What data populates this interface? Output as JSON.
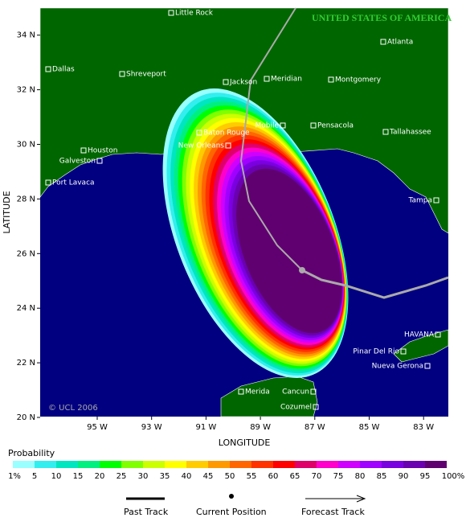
{
  "map": {
    "country_label": "UNITED STATES OF AMERICA",
    "credit": "© UCL 2006",
    "x_axis_label": "LONGITUDE",
    "y_axis_label": "LATITUDE",
    "xticks": [
      {
        "value": -95,
        "label": "95 W"
      },
      {
        "value": -93,
        "label": "93 W"
      },
      {
        "value": -91,
        "label": "91 W"
      },
      {
        "value": -89,
        "label": "89 W"
      },
      {
        "value": -87,
        "label": "87 W"
      },
      {
        "value": -85,
        "label": "85 W"
      },
      {
        "value": -83,
        "label": "83 W"
      }
    ],
    "yticks": [
      {
        "value": 20,
        "label": "20 N"
      },
      {
        "value": 22,
        "label": "22 N"
      },
      {
        "value": 24,
        "label": "24 N"
      },
      {
        "value": 26,
        "label": "26 N"
      },
      {
        "value": 28,
        "label": "28 N"
      },
      {
        "value": 30,
        "label": "30 N"
      },
      {
        "value": 32,
        "label": "32 N"
      },
      {
        "value": 34,
        "label": "34 N"
      }
    ],
    "cities": [
      "Little Rock",
      "Dallas",
      "Shreveport",
      "Jackson",
      "Meridian",
      "Montgomery",
      "Atlanta",
      "Mobile",
      "Pensacola",
      "Tallahassee",
      "Baton Rouge",
      "New Orleans",
      "Houston",
      "Galveston",
      "Port Lavaca",
      "Tampa",
      "HAVANA",
      "Pinar Del Rio",
      "Nueva Gerona",
      "Merida",
      "Cancun",
      "Cozumel"
    ]
  },
  "legend": {
    "title": "Probability",
    "labels": [
      "1%",
      "5",
      "10",
      "15",
      "20",
      "25",
      "30",
      "35",
      "40",
      "45",
      "50",
      "55",
      "60",
      "65",
      "70",
      "75",
      "80",
      "85",
      "90",
      "95",
      "100%"
    ],
    "colors": [
      "#99ffff",
      "#33eeee",
      "#00e6c0",
      "#00f080",
      "#00ff00",
      "#80ff00",
      "#ccff00",
      "#ffff00",
      "#ffcc00",
      "#ff9900",
      "#ff6600",
      "#ff3300",
      "#ff0000",
      "#e0006a",
      "#ff00cc",
      "#d000ff",
      "#a000ff",
      "#7a00e0",
      "#6a00b0",
      "#600070"
    ],
    "past_track": "Past Track",
    "current_position": "Current Position",
    "forecast_track": "Forecast Track"
  }
}
